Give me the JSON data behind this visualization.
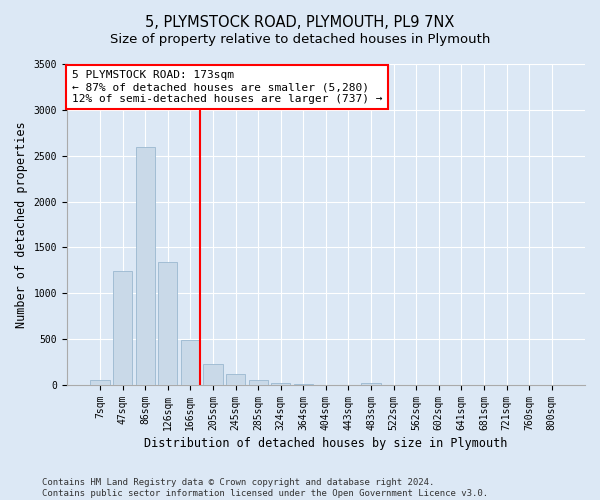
{
  "title": "5, PLYMSTOCK ROAD, PLYMOUTH, PL9 7NX",
  "subtitle": "Size of property relative to detached houses in Plymouth",
  "xlabel": "Distribution of detached houses by size in Plymouth",
  "ylabel": "Number of detached properties",
  "categories": [
    "7sqm",
    "47sqm",
    "86sqm",
    "126sqm",
    "166sqm",
    "205sqm",
    "245sqm",
    "285sqm",
    "324sqm",
    "364sqm",
    "404sqm",
    "443sqm",
    "483sqm",
    "522sqm",
    "562sqm",
    "602sqm",
    "641sqm",
    "681sqm",
    "721sqm",
    "760sqm",
    "800sqm"
  ],
  "values": [
    55,
    1240,
    2590,
    1340,
    490,
    230,
    120,
    50,
    25,
    15,
    5,
    0,
    20,
    0,
    0,
    0,
    0,
    0,
    0,
    0,
    0
  ],
  "bar_color": "#c9d9e8",
  "bar_edge_color": "#9ab8d0",
  "red_line_color": "red",
  "red_line_x": 4,
  "annotation_text": "5 PLYMSTOCK ROAD: 173sqm\n← 87% of detached houses are smaller (5,280)\n12% of semi-detached houses are larger (737) →",
  "annotation_box_color": "white",
  "annotation_box_edge_color": "red",
  "ylim": [
    0,
    3500
  ],
  "yticks": [
    0,
    500,
    1000,
    1500,
    2000,
    2500,
    3000,
    3500
  ],
  "bg_color": "#dce8f5",
  "plot_bg_color": "#dce8f5",
  "footer_line1": "Contains HM Land Registry data © Crown copyright and database right 2024.",
  "footer_line2": "Contains public sector information licensed under the Open Government Licence v3.0.",
  "title_fontsize": 10.5,
  "subtitle_fontsize": 9.5,
  "axis_label_fontsize": 8.5,
  "tick_fontsize": 7,
  "annotation_fontsize": 8,
  "footer_fontsize": 6.5
}
